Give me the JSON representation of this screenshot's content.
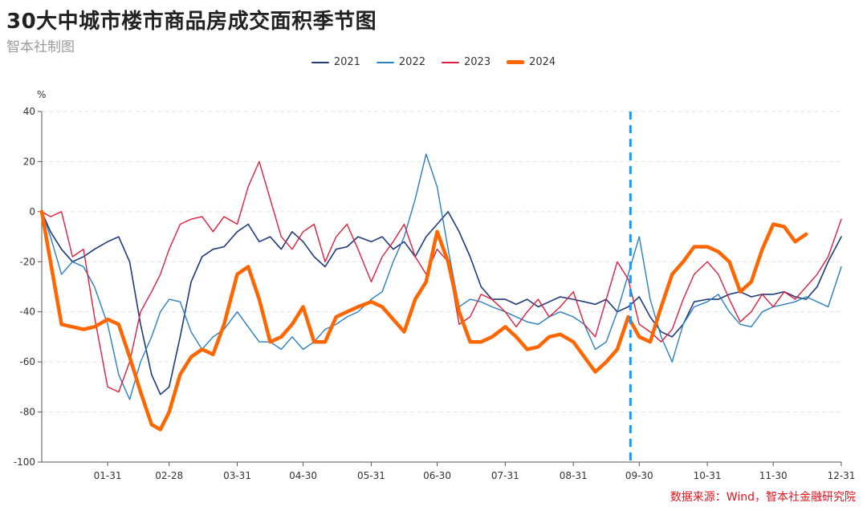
{
  "header": {
    "title": "30大中城市楼市商品房成交面积季节图",
    "subtitle": "智本社制图"
  },
  "footer": {
    "source": "数据来源：Wind，智本社金融研究院"
  },
  "chart_data": {
    "type": "line",
    "title": "30大中城市楼市商品房成交面积季节图",
    "ylabel": "%",
    "xlabel": "",
    "ylim": [
      -100,
      40
    ],
    "yticks": [
      40,
      20,
      0,
      -20,
      -40,
      -60,
      -80,
      -100
    ],
    "xlim": [
      "01-01",
      "12-31"
    ],
    "xticks": [
      "01-31",
      "02-28",
      "03-31",
      "04-30",
      "05-31",
      "06-30",
      "07-31",
      "08-31",
      "09-30",
      "10-31",
      "11-30",
      "12-31"
    ],
    "grid": "horizontal dashed",
    "legend_position": "top-center",
    "vline": {
      "x": "09-26",
      "color": "#2196f3",
      "style": "dashed"
    },
    "series": [
      {
        "name": "2021",
        "color": "#1f3a7a",
        "width": 1.6,
        "x": [
          "01-01",
          "01-05",
          "01-10",
          "01-15",
          "01-20",
          "01-25",
          "01-31",
          "02-05",
          "02-10",
          "02-15",
          "02-20",
          "02-24",
          "02-28",
          "03-05",
          "03-10",
          "03-15",
          "03-20",
          "03-25",
          "03-31",
          "04-05",
          "04-10",
          "04-15",
          "04-20",
          "04-25",
          "04-30",
          "05-05",
          "05-10",
          "05-15",
          "05-20",
          "05-25",
          "05-31",
          "06-05",
          "06-10",
          "06-15",
          "06-20",
          "06-25",
          "06-30",
          "07-05",
          "07-10",
          "07-15",
          "07-20",
          "07-25",
          "07-31",
          "08-05",
          "08-10",
          "08-15",
          "08-20",
          "08-25",
          "08-31",
          "09-05",
          "09-10",
          "09-15",
          "09-20",
          "09-25",
          "09-30",
          "10-05",
          "10-10",
          "10-15",
          "10-20",
          "10-25",
          "10-31",
          "11-05",
          "11-10",
          "11-15",
          "11-20",
          "11-25",
          "11-30",
          "12-05",
          "12-10",
          "12-15",
          "12-20",
          "12-25",
          "12-31"
        ],
        "values": [
          0,
          -8,
          -15,
          -20,
          -18,
          -15,
          -12,
          -10,
          -20,
          -45,
          -65,
          -73,
          -70,
          -50,
          -28,
          -18,
          -15,
          -14,
          -8,
          -5,
          -12,
          -10,
          -15,
          -8,
          -12,
          -18,
          -22,
          -15,
          -14,
          -10,
          -12,
          -10,
          -15,
          -12,
          -18,
          -10,
          -5,
          0,
          -8,
          -18,
          -30,
          -35,
          -35,
          -37,
          -35,
          -38,
          -36,
          -34,
          -35,
          -36,
          -37,
          -35,
          -40,
          -38,
          -34,
          -42,
          -48,
          -50,
          -45,
          -36,
          -35,
          -35,
          -33,
          -32,
          -34,
          -33,
          -33,
          -32,
          -34,
          -35,
          -30,
          -20,
          -10
        ]
      },
      {
        "name": "2022",
        "color": "#2a7fc0",
        "width": 1.4,
        "x": [
          "01-01",
          "01-05",
          "01-10",
          "01-15",
          "01-20",
          "01-25",
          "01-31",
          "02-05",
          "02-10",
          "02-15",
          "02-20",
          "02-24",
          "02-28",
          "03-05",
          "03-10",
          "03-15",
          "03-20",
          "03-25",
          "03-31",
          "04-05",
          "04-10",
          "04-15",
          "04-20",
          "04-25",
          "04-30",
          "05-05",
          "05-10",
          "05-15",
          "05-20",
          "05-25",
          "05-31",
          "06-05",
          "06-10",
          "06-15",
          "06-20",
          "06-25",
          "06-30",
          "07-05",
          "07-10",
          "07-15",
          "07-20",
          "07-25",
          "07-31",
          "08-05",
          "08-10",
          "08-15",
          "08-20",
          "08-25",
          "08-31",
          "09-05",
          "09-10",
          "09-15",
          "09-20",
          "09-25",
          "09-30",
          "10-05",
          "10-10",
          "10-15",
          "10-20",
          "10-25",
          "10-31",
          "11-05",
          "11-10",
          "11-15",
          "11-20",
          "11-25",
          "11-30",
          "12-05",
          "12-10",
          "12-15",
          "12-20",
          "12-25",
          "12-31"
        ],
        "values": [
          0,
          -10,
          -25,
          -20,
          -22,
          -30,
          -45,
          -65,
          -75,
          -60,
          -50,
          -40,
          -35,
          -36,
          -48,
          -55,
          -50,
          -47,
          -40,
          -46,
          -52,
          -52,
          -55,
          -50,
          -55,
          -52,
          -47,
          -45,
          -42,
          -40,
          -35,
          -32,
          -20,
          -10,
          5,
          23,
          10,
          -15,
          -38,
          -35,
          -36,
          -38,
          -40,
          -42,
          -44,
          -45,
          -42,
          -40,
          -42,
          -45,
          -55,
          -52,
          -40,
          -25,
          -10,
          -35,
          -50,
          -60,
          -45,
          -38,
          -36,
          -33,
          -40,
          -45,
          -46,
          -40,
          -38,
          -37,
          -36,
          -34,
          -36,
          -38,
          -22
        ]
      },
      {
        "name": "2023",
        "color": "#e01e3c",
        "width": 1.4,
        "x": [
          "01-01",
          "01-05",
          "01-10",
          "01-15",
          "01-20",
          "01-25",
          "01-31",
          "02-05",
          "02-10",
          "02-15",
          "02-20",
          "02-24",
          "02-28",
          "03-05",
          "03-10",
          "03-15",
          "03-20",
          "03-25",
          "03-31",
          "04-05",
          "04-10",
          "04-15",
          "04-20",
          "04-25",
          "04-30",
          "05-05",
          "05-10",
          "05-15",
          "05-20",
          "05-25",
          "05-31",
          "06-05",
          "06-10",
          "06-15",
          "06-20",
          "06-25",
          "06-30",
          "07-05",
          "07-10",
          "07-15",
          "07-20",
          "07-25",
          "07-31",
          "08-05",
          "08-10",
          "08-15",
          "08-20",
          "08-25",
          "08-31",
          "09-05",
          "09-10",
          "09-15",
          "09-20",
          "09-25",
          "09-30",
          "10-05",
          "10-10",
          "10-15",
          "10-20",
          "10-25",
          "10-31",
          "11-05",
          "11-10",
          "11-15",
          "11-20",
          "11-25",
          "11-30",
          "12-05",
          "12-10",
          "12-15",
          "12-20",
          "12-25",
          "12-31"
        ],
        "values": [
          0,
          -2,
          0,
          -18,
          -15,
          -42,
          -70,
          -72,
          -60,
          -40,
          -32,
          -25,
          -15,
          -5,
          -3,
          -2,
          -8,
          -2,
          -5,
          10,
          20,
          5,
          -10,
          -15,
          -8,
          -5,
          -20,
          -10,
          -5,
          -15,
          -28,
          -18,
          -12,
          -5,
          -18,
          -25,
          -15,
          -20,
          -45,
          -42,
          -33,
          -35,
          -40,
          -46,
          -40,
          -35,
          -42,
          -38,
          -32,
          -45,
          -50,
          -35,
          -20,
          -27,
          -45,
          -48,
          -52,
          -47,
          -35,
          -25,
          -20,
          -25,
          -35,
          -44,
          -40,
          -33,
          -38,
          -32,
          -35,
          -30,
          -25,
          -18,
          -3
        ]
      },
      {
        "name": "2024",
        "color": "#ff6600",
        "width": 4.5,
        "x": [
          "01-01",
          "01-05",
          "01-10",
          "01-15",
          "01-20",
          "01-25",
          "01-31",
          "02-05",
          "02-10",
          "02-15",
          "02-20",
          "02-24",
          "02-28",
          "03-05",
          "03-10",
          "03-15",
          "03-20",
          "03-25",
          "03-31",
          "04-05",
          "04-10",
          "04-15",
          "04-20",
          "04-25",
          "04-30",
          "05-05",
          "05-10",
          "05-15",
          "05-20",
          "05-25",
          "05-31",
          "06-05",
          "06-10",
          "06-15",
          "06-20",
          "06-25",
          "06-30",
          "07-05",
          "07-10",
          "07-15",
          "07-20",
          "07-25",
          "07-31",
          "08-05",
          "08-10",
          "08-15",
          "08-20",
          "08-25",
          "08-31",
          "09-05",
          "09-10",
          "09-15",
          "09-20",
          "09-25",
          "09-30",
          "10-05",
          "10-10",
          "10-15",
          "10-20",
          "10-25",
          "10-31",
          "11-05",
          "11-10",
          "11-15",
          "11-20",
          "11-25",
          "11-30",
          "12-05",
          "12-10",
          "12-15"
        ],
        "values": [
          0,
          -20,
          -45,
          -46,
          -47,
          -46,
          -43,
          -45,
          -58,
          -72,
          -85,
          -87,
          -80,
          -65,
          -58,
          -55,
          -57,
          -45,
          -25,
          -22,
          -35,
          -52,
          -50,
          -45,
          -38,
          -52,
          -52,
          -42,
          -40,
          -38,
          -36,
          -38,
          -43,
          -48,
          -35,
          -28,
          -8,
          -20,
          -40,
          -52,
          -52,
          -50,
          -46,
          -50,
          -55,
          -54,
          -50,
          -49,
          -52,
          -58,
          -64,
          -60,
          -55,
          -42,
          -50,
          -52,
          -38,
          -25,
          -20,
          -14,
          -14,
          -16,
          -20,
          -32,
          -28,
          -15,
          -5,
          -6,
          -12,
          -9
        ]
      }
    ]
  }
}
